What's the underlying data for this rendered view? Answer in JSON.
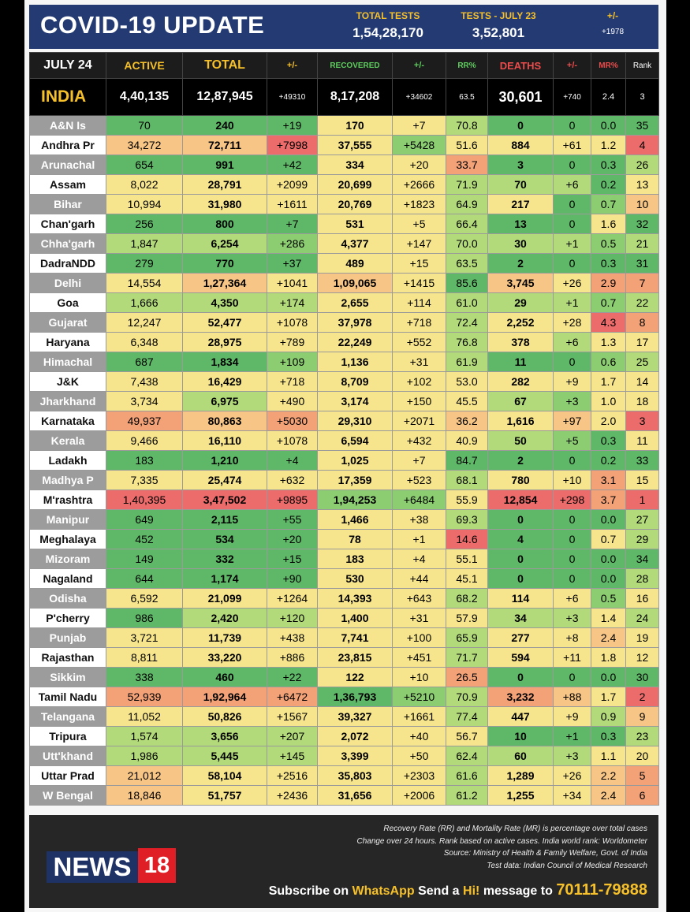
{
  "header": {
    "title": "COVID-19 UPDATE",
    "total_tests_label": "TOTAL TESTS",
    "total_tests_value": "1,54,28,170",
    "tests_day_label": "TESTS - JULY 23",
    "tests_day_value": "3,52,801",
    "change_label": "+/-",
    "change_value": "+1978"
  },
  "columns": {
    "date": "JULY 24",
    "active": "ACTIVE",
    "total": "TOTAL",
    "total_change": "+/-",
    "recovered": "RECOVERED",
    "recovered_change": "+/-",
    "rr": "RR%",
    "deaths": "DEATHS",
    "deaths_change": "+/-",
    "mr": "MR%",
    "rank": "Rank"
  },
  "india": {
    "name": "INDIA",
    "active": "4,40,135",
    "total": "12,87,945",
    "total_change": "+49310",
    "recovered": "8,17,208",
    "recovered_change": "+34602",
    "rr": "63.5",
    "deaths": "30,601",
    "deaths_change": "+740",
    "mr": "2.4",
    "rank": "3"
  },
  "colors": {
    "green_dark": "#5fb868",
    "green": "#8ccd72",
    "green_light": "#b3da7a",
    "yellow": "#f6e58c",
    "orange_light": "#f7c585",
    "orange": "#f3a277",
    "red": "#ec6b6b",
    "header_blue": "#243a72",
    "accent_yellow": "#f6c02a",
    "logo_red": "#e01e25"
  },
  "states": [
    {
      "name": "A&N Is",
      "active": "70",
      "total": "240",
      "total_change": "+19",
      "recovered": "170",
      "recovered_change": "+7",
      "rr": "70.8",
      "deaths": "0",
      "deaths_change": "0",
      "mr": "0.0",
      "rank": "35",
      "c": [
        "gd",
        "gd",
        "gd",
        "y",
        "y",
        "gl",
        "gd",
        "gd",
        "gd",
        "gd"
      ]
    },
    {
      "name": "Andhra Pr",
      "active": "34,272",
      "total": "72,711",
      "total_change": "+7998",
      "recovered": "37,555",
      "recovered_change": "+5428",
      "rr": "51.6",
      "deaths": "884",
      "deaths_change": "+61",
      "mr": "1.2",
      "rank": "4",
      "c": [
        "ol",
        "ol",
        "r",
        "y",
        "g",
        "y",
        "y",
        "y",
        "y",
        "r"
      ]
    },
    {
      "name": "Arunachal",
      "active": "654",
      "total": "991",
      "total_change": "+42",
      "recovered": "334",
      "recovered_change": "+20",
      "rr": "33.7",
      "deaths": "3",
      "deaths_change": "0",
      "mr": "0.3",
      "rank": "26",
      "c": [
        "gd",
        "gd",
        "gd",
        "y",
        "y",
        "o",
        "gd",
        "gd",
        "gd",
        "gl"
      ]
    },
    {
      "name": "Assam",
      "active": "8,022",
      "total": "28,791",
      "total_change": "+2099",
      "recovered": "20,699",
      "recovered_change": "+2666",
      "rr": "71.9",
      "deaths": "70",
      "deaths_change": "+6",
      "mr": "0.2",
      "rank": "13",
      "c": [
        "y",
        "y",
        "y",
        "y",
        "y",
        "gl",
        "gl",
        "gl",
        "gd",
        "y"
      ]
    },
    {
      "name": "Bihar",
      "active": "10,994",
      "total": "31,980",
      "total_change": "+1611",
      "recovered": "20,769",
      "recovered_change": "+1823",
      "rr": "64.9",
      "deaths": "217",
      "deaths_change": "0",
      "mr": "0.7",
      "rank": "10",
      "c": [
        "y",
        "y",
        "y",
        "y",
        "y",
        "gl",
        "y",
        "gd",
        "g",
        "ol"
      ]
    },
    {
      "name": "Chan'garh",
      "active": "256",
      "total": "800",
      "total_change": "+7",
      "recovered": "531",
      "recovered_change": "+5",
      "rr": "66.4",
      "deaths": "13",
      "deaths_change": "0",
      "mr": "1.6",
      "rank": "32",
      "c": [
        "gd",
        "gd",
        "gd",
        "y",
        "y",
        "gl",
        "gd",
        "gd",
        "y",
        "gd"
      ]
    },
    {
      "name": "Chha'garh",
      "active": "1,847",
      "total": "6,254",
      "total_change": "+286",
      "recovered": "4,377",
      "recovered_change": "+147",
      "rr": "70.0",
      "deaths": "30",
      "deaths_change": "+1",
      "mr": "0.5",
      "rank": "21",
      "c": [
        "gl",
        "gl",
        "g",
        "y",
        "y",
        "gl",
        "gl",
        "gl",
        "g",
        "gl"
      ]
    },
    {
      "name": "DadraNDD",
      "active": "279",
      "total": "770",
      "total_change": "+37",
      "recovered": "489",
      "recovered_change": "+15",
      "rr": "63.5",
      "deaths": "2",
      "deaths_change": "0",
      "mr": "0.3",
      "rank": "31",
      "c": [
        "gd",
        "gd",
        "gd",
        "y",
        "y",
        "gl",
        "gd",
        "gd",
        "gd",
        "gd"
      ]
    },
    {
      "name": "Delhi",
      "active": "14,554",
      "total": "1,27,364",
      "total_change": "+1041",
      "recovered": "1,09,065",
      "recovered_change": "+1415",
      "rr": "85.6",
      "deaths": "3,745",
      "deaths_change": "+26",
      "mr": "2.9",
      "rank": "7",
      "c": [
        "y",
        "ol",
        "y",
        "ol",
        "y",
        "gd",
        "ol",
        "y",
        "o",
        "o"
      ]
    },
    {
      "name": "Goa",
      "active": "1,666",
      "total": "4,350",
      "total_change": "+174",
      "recovered": "2,655",
      "recovered_change": "+114",
      "rr": "61.0",
      "deaths": "29",
      "deaths_change": "+1",
      "mr": "0.7",
      "rank": "22",
      "c": [
        "gl",
        "gl",
        "gl",
        "y",
        "y",
        "gl",
        "gl",
        "gl",
        "g",
        "gl"
      ]
    },
    {
      "name": "Gujarat",
      "active": "12,247",
      "total": "52,477",
      "total_change": "+1078",
      "recovered": "37,978",
      "recovered_change": "+718",
      "rr": "72.4",
      "deaths": "2,252",
      "deaths_change": "+28",
      "mr": "4.3",
      "rank": "8",
      "c": [
        "y",
        "y",
        "y",
        "y",
        "y",
        "gl",
        "y",
        "y",
        "r",
        "o"
      ]
    },
    {
      "name": "Haryana",
      "active": "6,348",
      "total": "28,975",
      "total_change": "+789",
      "recovered": "22,249",
      "recovered_change": "+552",
      "rr": "76.8",
      "deaths": "378",
      "deaths_change": "+6",
      "mr": "1.3",
      "rank": "17",
      "c": [
        "y",
        "y",
        "y",
        "y",
        "y",
        "gl",
        "y",
        "gl",
        "y",
        "y"
      ]
    },
    {
      "name": "Himachal",
      "active": "687",
      "total": "1,834",
      "total_change": "+109",
      "recovered": "1,136",
      "recovered_change": "+31",
      "rr": "61.9",
      "deaths": "11",
      "deaths_change": "0",
      "mr": "0.6",
      "rank": "25",
      "c": [
        "gd",
        "gd",
        "g",
        "y",
        "y",
        "gl",
        "gd",
        "gd",
        "g",
        "gl"
      ]
    },
    {
      "name": "J&K",
      "active": "7,438",
      "total": "16,429",
      "total_change": "+718",
      "recovered": "8,709",
      "recovered_change": "+102",
      "rr": "53.0",
      "deaths": "282",
      "deaths_change": "+9",
      "mr": "1.7",
      "rank": "14",
      "c": [
        "y",
        "y",
        "y",
        "y",
        "y",
        "y",
        "y",
        "y",
        "y",
        "y"
      ]
    },
    {
      "name": "Jharkhand",
      "active": "3,734",
      "total": "6,975",
      "total_change": "+490",
      "recovered": "3,174",
      "recovered_change": "+150",
      "rr": "45.5",
      "deaths": "67",
      "deaths_change": "+3",
      "mr": "1.0",
      "rank": "18",
      "c": [
        "y",
        "gl",
        "y",
        "y",
        "y",
        "y",
        "gl",
        "g",
        "y",
        "y"
      ]
    },
    {
      "name": "Karnataka",
      "active": "49,937",
      "total": "80,863",
      "total_change": "+5030",
      "recovered": "29,310",
      "recovered_change": "+2071",
      "rr": "36.2",
      "deaths": "1,616",
      "deaths_change": "+97",
      "mr": "2.0",
      "rank": "3",
      "c": [
        "o",
        "ol",
        "o",
        "y",
        "y",
        "ol",
        "y",
        "ol",
        "y",
        "r"
      ]
    },
    {
      "name": "Kerala",
      "active": "9,466",
      "total": "16,110",
      "total_change": "+1078",
      "recovered": "6,594",
      "recovered_change": "+432",
      "rr": "40.9",
      "deaths": "50",
      "deaths_change": "+5",
      "mr": "0.3",
      "rank": "11",
      "c": [
        "y",
        "y",
        "y",
        "y",
        "y",
        "y",
        "gl",
        "g",
        "gd",
        "y"
      ]
    },
    {
      "name": "Ladakh",
      "active": "183",
      "total": "1,210",
      "total_change": "+4",
      "recovered": "1,025",
      "recovered_change": "+7",
      "rr": "84.7",
      "deaths": "2",
      "deaths_change": "0",
      "mr": "0.2",
      "rank": "33",
      "c": [
        "gd",
        "gd",
        "gd",
        "y",
        "y",
        "gd",
        "gd",
        "gd",
        "gd",
        "gd"
      ]
    },
    {
      "name": "Madhya P",
      "active": "7,335",
      "total": "25,474",
      "total_change": "+632",
      "recovered": "17,359",
      "recovered_change": "+523",
      "rr": "68.1",
      "deaths": "780",
      "deaths_change": "+10",
      "mr": "3.1",
      "rank": "15",
      "c": [
        "y",
        "y",
        "y",
        "y",
        "y",
        "gl",
        "y",
        "y",
        "o",
        "y"
      ]
    },
    {
      "name": "M'rashtra",
      "active": "1,40,395",
      "total": "3,47,502",
      "total_change": "+9895",
      "recovered": "1,94,253",
      "recovered_change": "+6484",
      "rr": "55.9",
      "deaths": "12,854",
      "deaths_change": "+298",
      "mr": "3.7",
      "rank": "1",
      "c": [
        "r",
        "r",
        "r",
        "g",
        "g",
        "y",
        "r",
        "r",
        "o",
        "r"
      ]
    },
    {
      "name": "Manipur",
      "active": "649",
      "total": "2,115",
      "total_change": "+55",
      "recovered": "1,466",
      "recovered_change": "+38",
      "rr": "69.3",
      "deaths": "0",
      "deaths_change": "0",
      "mr": "0.0",
      "rank": "27",
      "c": [
        "gd",
        "gd",
        "gd",
        "y",
        "y",
        "gl",
        "gd",
        "gd",
        "gd",
        "gl"
      ]
    },
    {
      "name": "Meghalaya",
      "active": "452",
      "total": "534",
      "total_change": "+20",
      "recovered": "78",
      "recovered_change": "+1",
      "rr": "14.6",
      "deaths": "4",
      "deaths_change": "0",
      "mr": "0.7",
      "rank": "29",
      "c": [
        "gd",
        "gd",
        "gd",
        "y",
        "y",
        "r",
        "gd",
        "gd",
        "y",
        "gl"
      ]
    },
    {
      "name": "Mizoram",
      "active": "149",
      "total": "332",
      "total_change": "+15",
      "recovered": "183",
      "recovered_change": "+4",
      "rr": "55.1",
      "deaths": "0",
      "deaths_change": "0",
      "mr": "0.0",
      "rank": "34",
      "c": [
        "gd",
        "gd",
        "gd",
        "y",
        "y",
        "y",
        "gd",
        "gd",
        "gd",
        "gd"
      ]
    },
    {
      "name": "Nagaland",
      "active": "644",
      "total": "1,174",
      "total_change": "+90",
      "recovered": "530",
      "recovered_change": "+44",
      "rr": "45.1",
      "deaths": "0",
      "deaths_change": "0",
      "mr": "0.0",
      "rank": "28",
      "c": [
        "gd",
        "gd",
        "gd",
        "y",
        "y",
        "y",
        "gd",
        "gd",
        "gd",
        "gl"
      ]
    },
    {
      "name": "Odisha",
      "active": "6,592",
      "total": "21,099",
      "total_change": "+1264",
      "recovered": "14,393",
      "recovered_change": "+643",
      "rr": "68.2",
      "deaths": "114",
      "deaths_change": "+6",
      "mr": "0.5",
      "rank": "16",
      "c": [
        "y",
        "y",
        "y",
        "y",
        "y",
        "gl",
        "y",
        "y",
        "g",
        "y"
      ]
    },
    {
      "name": "P'cherry",
      "active": "986",
      "total": "2,420",
      "total_change": "+120",
      "recovered": "1,400",
      "recovered_change": "+31",
      "rr": "57.9",
      "deaths": "34",
      "deaths_change": "+3",
      "mr": "1.4",
      "rank": "24",
      "c": [
        "gd",
        "gl",
        "gl",
        "y",
        "y",
        "y",
        "gl",
        "gl",
        "y",
        "gl"
      ]
    },
    {
      "name": "Punjab",
      "active": "3,721",
      "total": "11,739",
      "total_change": "+438",
      "recovered": "7,741",
      "recovered_change": "+100",
      "rr": "65.9",
      "deaths": "277",
      "deaths_change": "+8",
      "mr": "2.4",
      "rank": "19",
      "c": [
        "y",
        "y",
        "y",
        "y",
        "y",
        "gl",
        "y",
        "y",
        "ol",
        "y"
      ]
    },
    {
      "name": "Rajasthan",
      "active": "8,811",
      "total": "33,220",
      "total_change": "+886",
      "recovered": "23,815",
      "recovered_change": "+451",
      "rr": "71.7",
      "deaths": "594",
      "deaths_change": "+11",
      "mr": "1.8",
      "rank": "12",
      "c": [
        "y",
        "y",
        "y",
        "y",
        "y",
        "gl",
        "y",
        "y",
        "y",
        "y"
      ]
    },
    {
      "name": "Sikkim",
      "active": "338",
      "total": "460",
      "total_change": "+22",
      "recovered": "122",
      "recovered_change": "+10",
      "rr": "26.5",
      "deaths": "0",
      "deaths_change": "0",
      "mr": "0.0",
      "rank": "30",
      "c": [
        "gd",
        "gd",
        "gd",
        "y",
        "y",
        "o",
        "gd",
        "gd",
        "gd",
        "gd"
      ]
    },
    {
      "name": "Tamil Nadu",
      "active": "52,939",
      "total": "1,92,964",
      "total_change": "+6472",
      "recovered": "1,36,793",
      "recovered_change": "+5210",
      "rr": "70.9",
      "deaths": "3,232",
      "deaths_change": "+88",
      "mr": "1.7",
      "rank": "2",
      "c": [
        "o",
        "o",
        "o",
        "gd",
        "g",
        "gl",
        "o",
        "ol",
        "y",
        "r"
      ]
    },
    {
      "name": "Telangana",
      "active": "11,052",
      "total": "50,826",
      "total_change": "+1567",
      "recovered": "39,327",
      "recovered_change": "+1661",
      "rr": "77.4",
      "deaths": "447",
      "deaths_change": "+9",
      "mr": "0.9",
      "rank": "9",
      "c": [
        "y",
        "y",
        "y",
        "y",
        "y",
        "gl",
        "y",
        "y",
        "gl",
        "ol"
      ]
    },
    {
      "name": "Tripura",
      "active": "1,574",
      "total": "3,656",
      "total_change": "+207",
      "recovered": "2,072",
      "recovered_change": "+40",
      "rr": "56.7",
      "deaths": "10",
      "deaths_change": "+1",
      "mr": "0.3",
      "rank": "23",
      "c": [
        "gl",
        "gl",
        "gl",
        "y",
        "y",
        "y",
        "gd",
        "gd",
        "gd",
        "gl"
      ]
    },
    {
      "name": "Utt'khand",
      "active": "1,986",
      "total": "5,445",
      "total_change": "+145",
      "recovered": "3,399",
      "recovered_change": "+50",
      "rr": "62.4",
      "deaths": "60",
      "deaths_change": "+3",
      "mr": "1.1",
      "rank": "20",
      "c": [
        "gl",
        "gl",
        "gl",
        "y",
        "y",
        "gl",
        "gl",
        "gl",
        "y",
        "y"
      ]
    },
    {
      "name": "Uttar Prad",
      "active": "21,012",
      "total": "58,104",
      "total_change": "+2516",
      "recovered": "35,803",
      "recovered_change": "+2303",
      "rr": "61.6",
      "deaths": "1,289",
      "deaths_change": "+26",
      "mr": "2.2",
      "rank": "5",
      "c": [
        "ol",
        "y",
        "y",
        "y",
        "y",
        "gl",
        "y",
        "y",
        "ol",
        "o"
      ]
    },
    {
      "name": "W Bengal",
      "active": "18,846",
      "total": "51,757",
      "total_change": "+2436",
      "recovered": "31,656",
      "recovered_change": "+2006",
      "rr": "61.2",
      "deaths": "1,255",
      "deaths_change": "+34",
      "mr": "2.4",
      "rank": "6",
      "c": [
        "ol",
        "y",
        "y",
        "y",
        "y",
        "gl",
        "y",
        "y",
        "ol",
        "o"
      ]
    }
  ],
  "footer": {
    "logo_text": "NEWS",
    "logo_number": "18",
    "notes": [
      "Recovery Rate (RR) and Mortality Rate (MR) is percentage over total cases",
      "Change over 24 hours. Rank based on active cases. India world rank: Worldometer",
      "Source: Ministry of Health & Family Welfare, Govt. of India",
      "Test data: Indian Council of Medical Research"
    ],
    "subscribe_pre": "Subscribe on",
    "subscribe_app": "WhatsApp",
    "subscribe_mid": "Send a",
    "subscribe_word": "Hi!",
    "subscribe_post": "message to",
    "phone": "70111-79888"
  }
}
